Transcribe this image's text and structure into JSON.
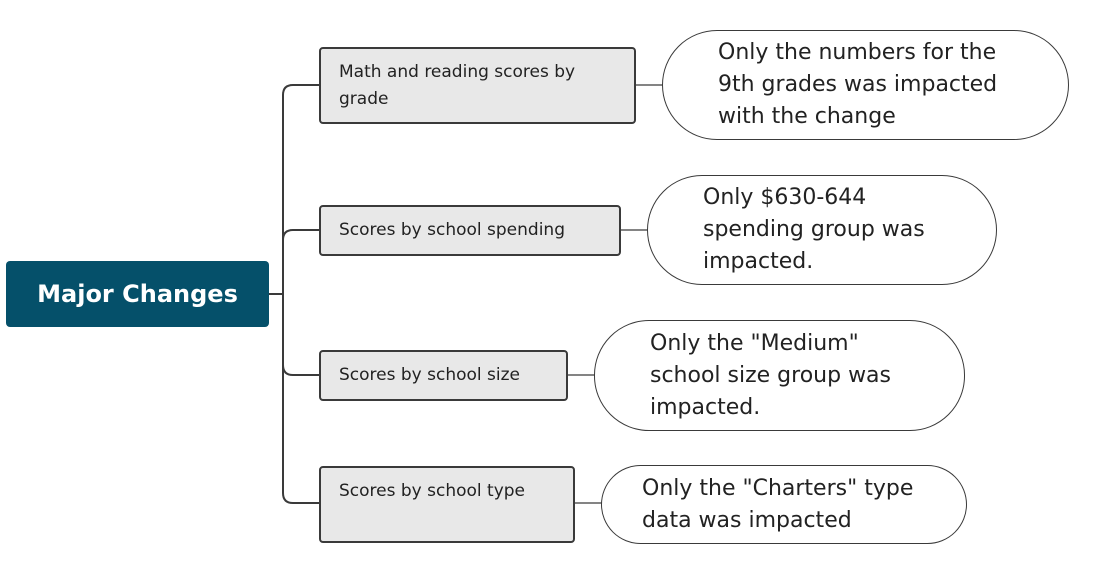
{
  "root": {
    "label": "Major Changes"
  },
  "branches": [
    {
      "label": "Math and reading scores by grade",
      "note": "Only the numbers for the 9th grades was impacted with the change"
    },
    {
      "label": "Scores by school spending",
      "note": "Only  $630-644 spending group was impacted."
    },
    {
      "label": "Scores by school size",
      "note": "Only the  \"Medium\" school size group was impacted."
    },
    {
      "label": "Scores by school type",
      "note": "Only the \"Charters\" type data was impacted"
    }
  ],
  "colors": {
    "root_fill": "#05506a",
    "branch_fill": "#e8e8e8",
    "outline": "#3a3a3a"
  }
}
